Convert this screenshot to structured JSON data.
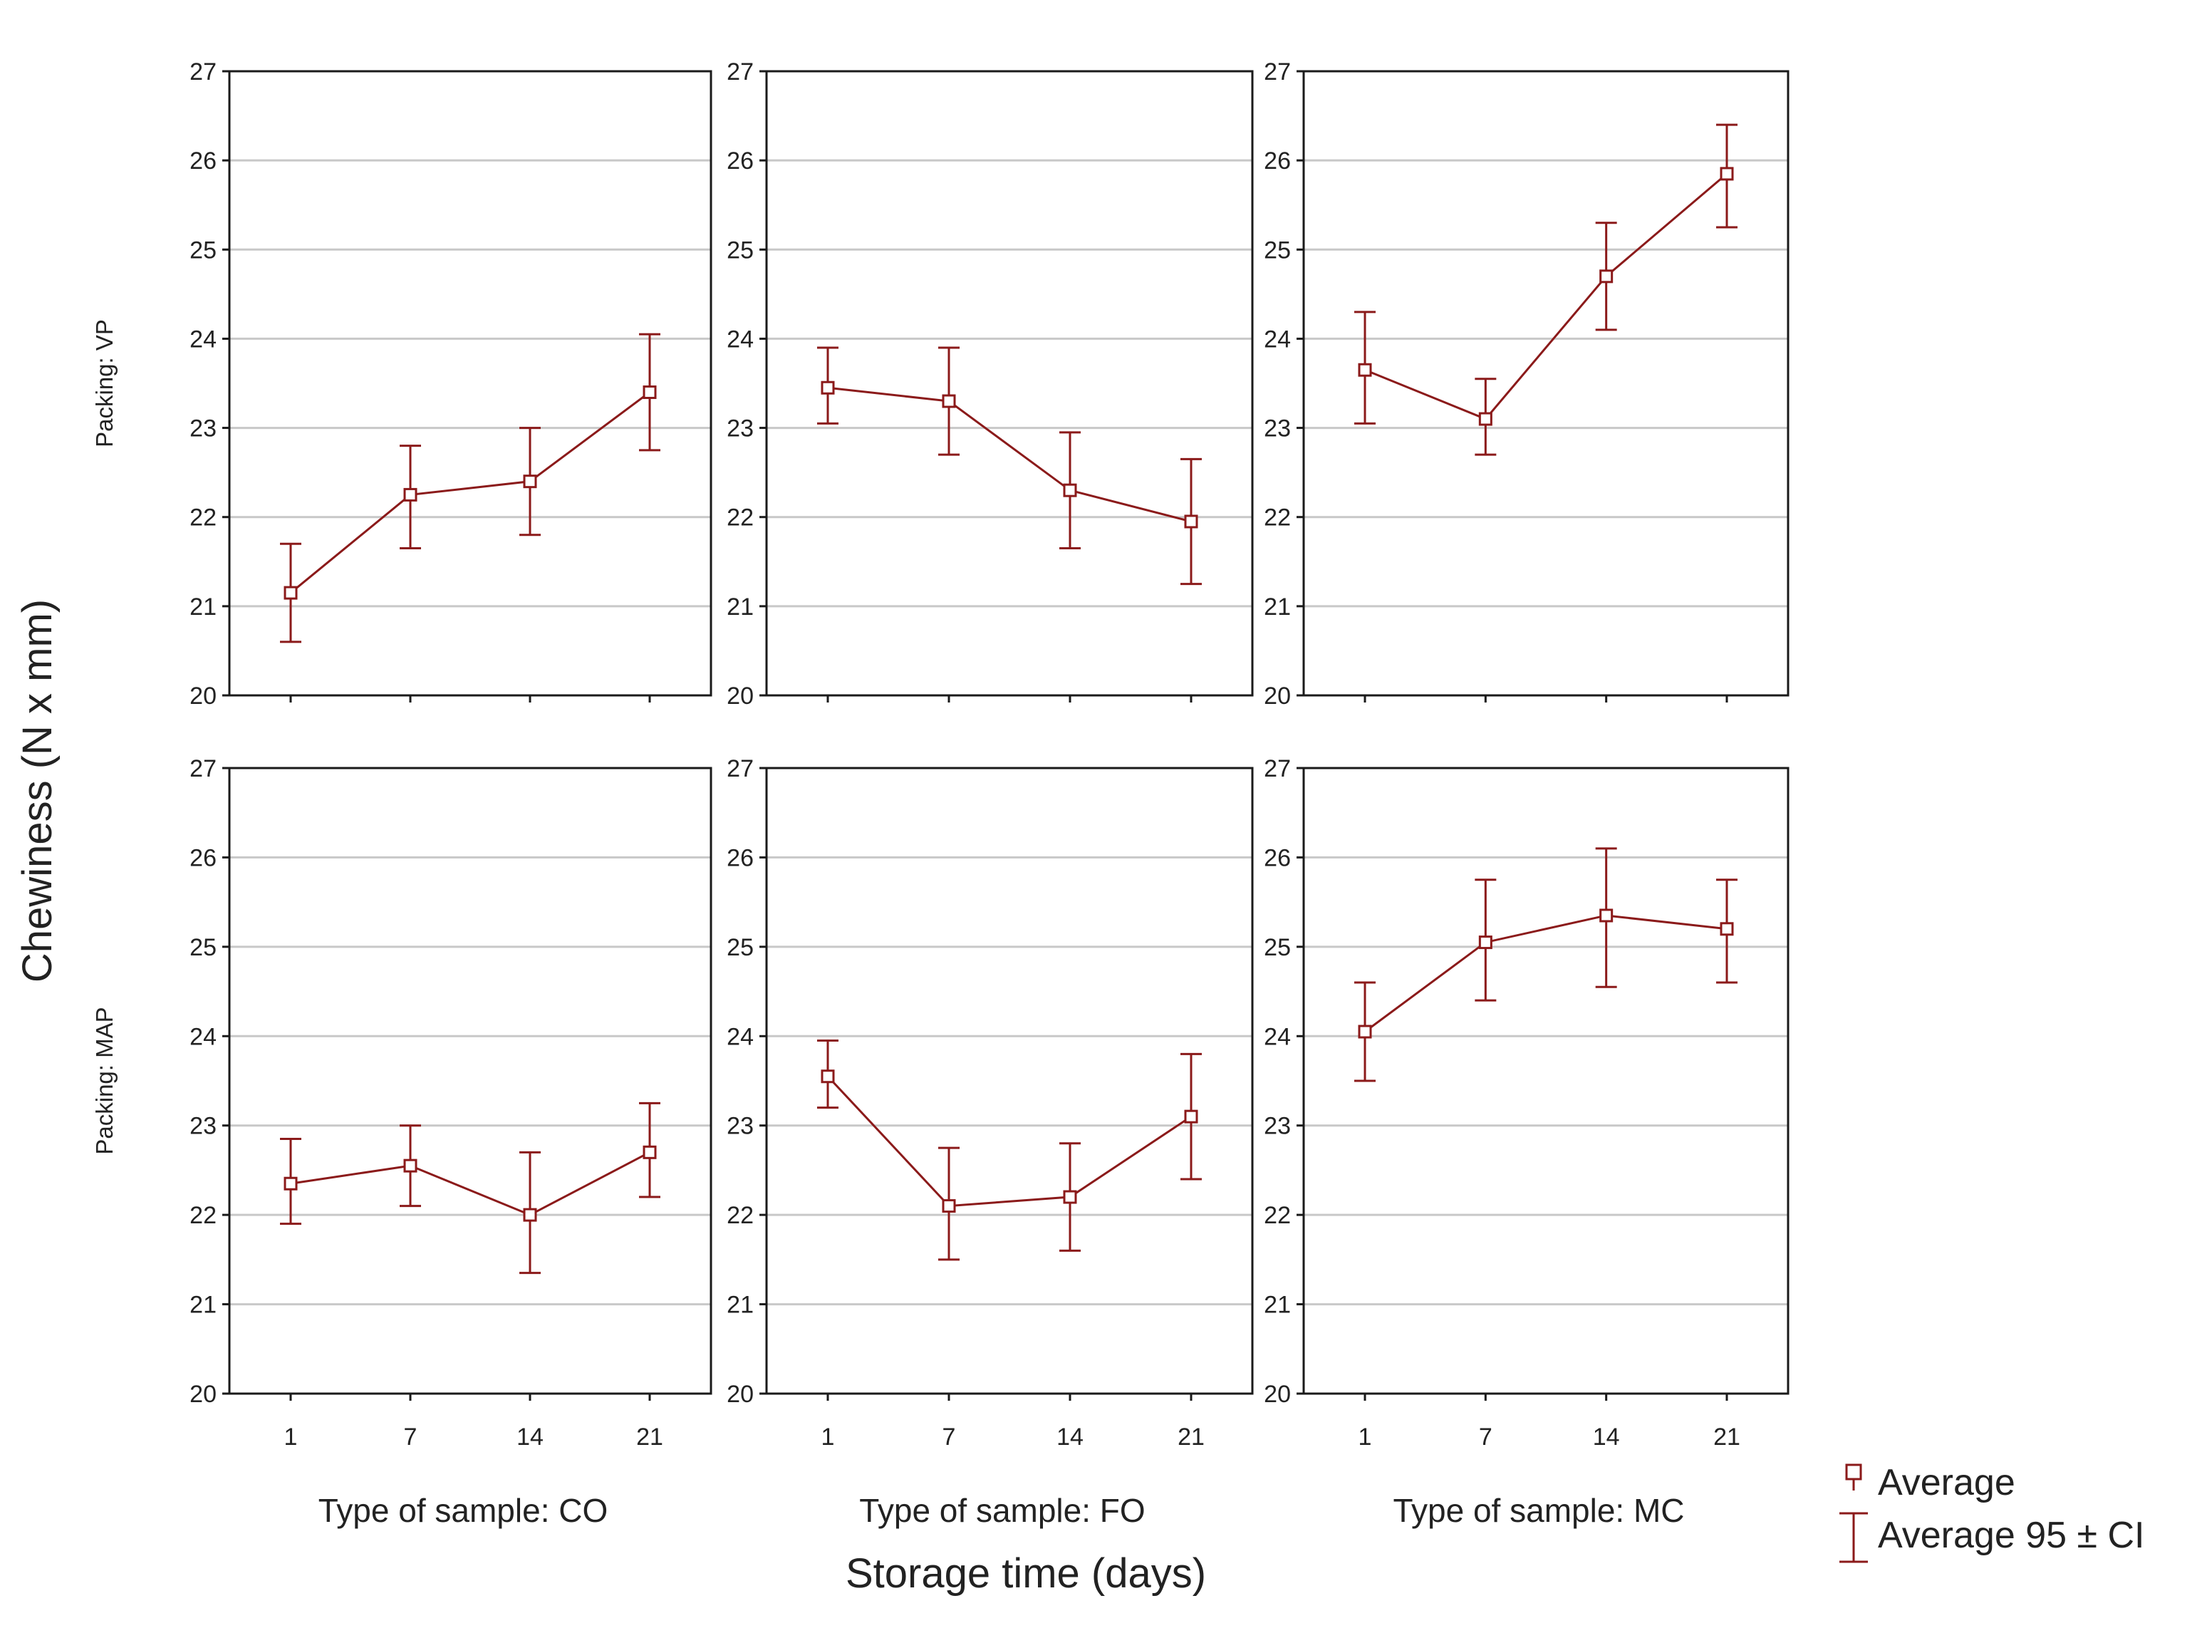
{
  "chart_data": {
    "type": "line",
    "ylabel": "Chewiness (N x mm)",
    "xlabel": "Storage time (days)",
    "ylim": [
      20,
      27
    ],
    "yticks": [
      "20",
      "21",
      "22",
      "23",
      "24",
      "25",
      "26",
      "27"
    ],
    "categories": [
      "1",
      "7",
      "14",
      "21"
    ],
    "grid": true,
    "line_color": "#8b1a1a",
    "columns": [
      "Type of sample: CO",
      "Type of sample: FO",
      "Type of sample: MC"
    ],
    "rows": [
      "Packing: VP",
      "Packing: MAP"
    ],
    "legend": {
      "position": "bottom-right",
      "items": [
        "Average",
        "Average 95 ± CI"
      ]
    },
    "panels": [
      {
        "row": 0,
        "col": 0,
        "mean": [
          21.15,
          22.25,
          22.4,
          23.4
        ],
        "ci_low": [
          20.6,
          21.65,
          21.8,
          22.75
        ],
        "ci_high": [
          21.7,
          22.8,
          23.0,
          24.05
        ]
      },
      {
        "row": 0,
        "col": 1,
        "mean": [
          23.45,
          23.3,
          22.3,
          21.95
        ],
        "ci_low": [
          23.05,
          22.7,
          21.65,
          21.25
        ],
        "ci_high": [
          23.9,
          23.9,
          22.95,
          22.65
        ]
      },
      {
        "row": 0,
        "col": 2,
        "mean": [
          23.65,
          23.1,
          24.7,
          25.85
        ],
        "ci_low": [
          23.05,
          22.7,
          24.1,
          25.25
        ],
        "ci_high": [
          24.3,
          23.55,
          25.3,
          26.4
        ]
      },
      {
        "row": 1,
        "col": 0,
        "mean": [
          22.35,
          22.55,
          22.0,
          22.7
        ],
        "ci_low": [
          21.9,
          22.1,
          21.35,
          22.2
        ],
        "ci_high": [
          22.85,
          23.0,
          22.7,
          23.25
        ]
      },
      {
        "row": 1,
        "col": 1,
        "mean": [
          23.55,
          22.1,
          22.2,
          23.1
        ],
        "ci_low": [
          23.2,
          21.5,
          21.6,
          22.4
        ],
        "ci_high": [
          23.95,
          22.75,
          22.8,
          23.8
        ]
      },
      {
        "row": 1,
        "col": 2,
        "mean": [
          24.05,
          25.05,
          25.35,
          25.2
        ],
        "ci_low": [
          23.5,
          24.4,
          24.55,
          24.6
        ],
        "ci_high": [
          24.6,
          25.75,
          26.1,
          25.75
        ]
      }
    ]
  }
}
